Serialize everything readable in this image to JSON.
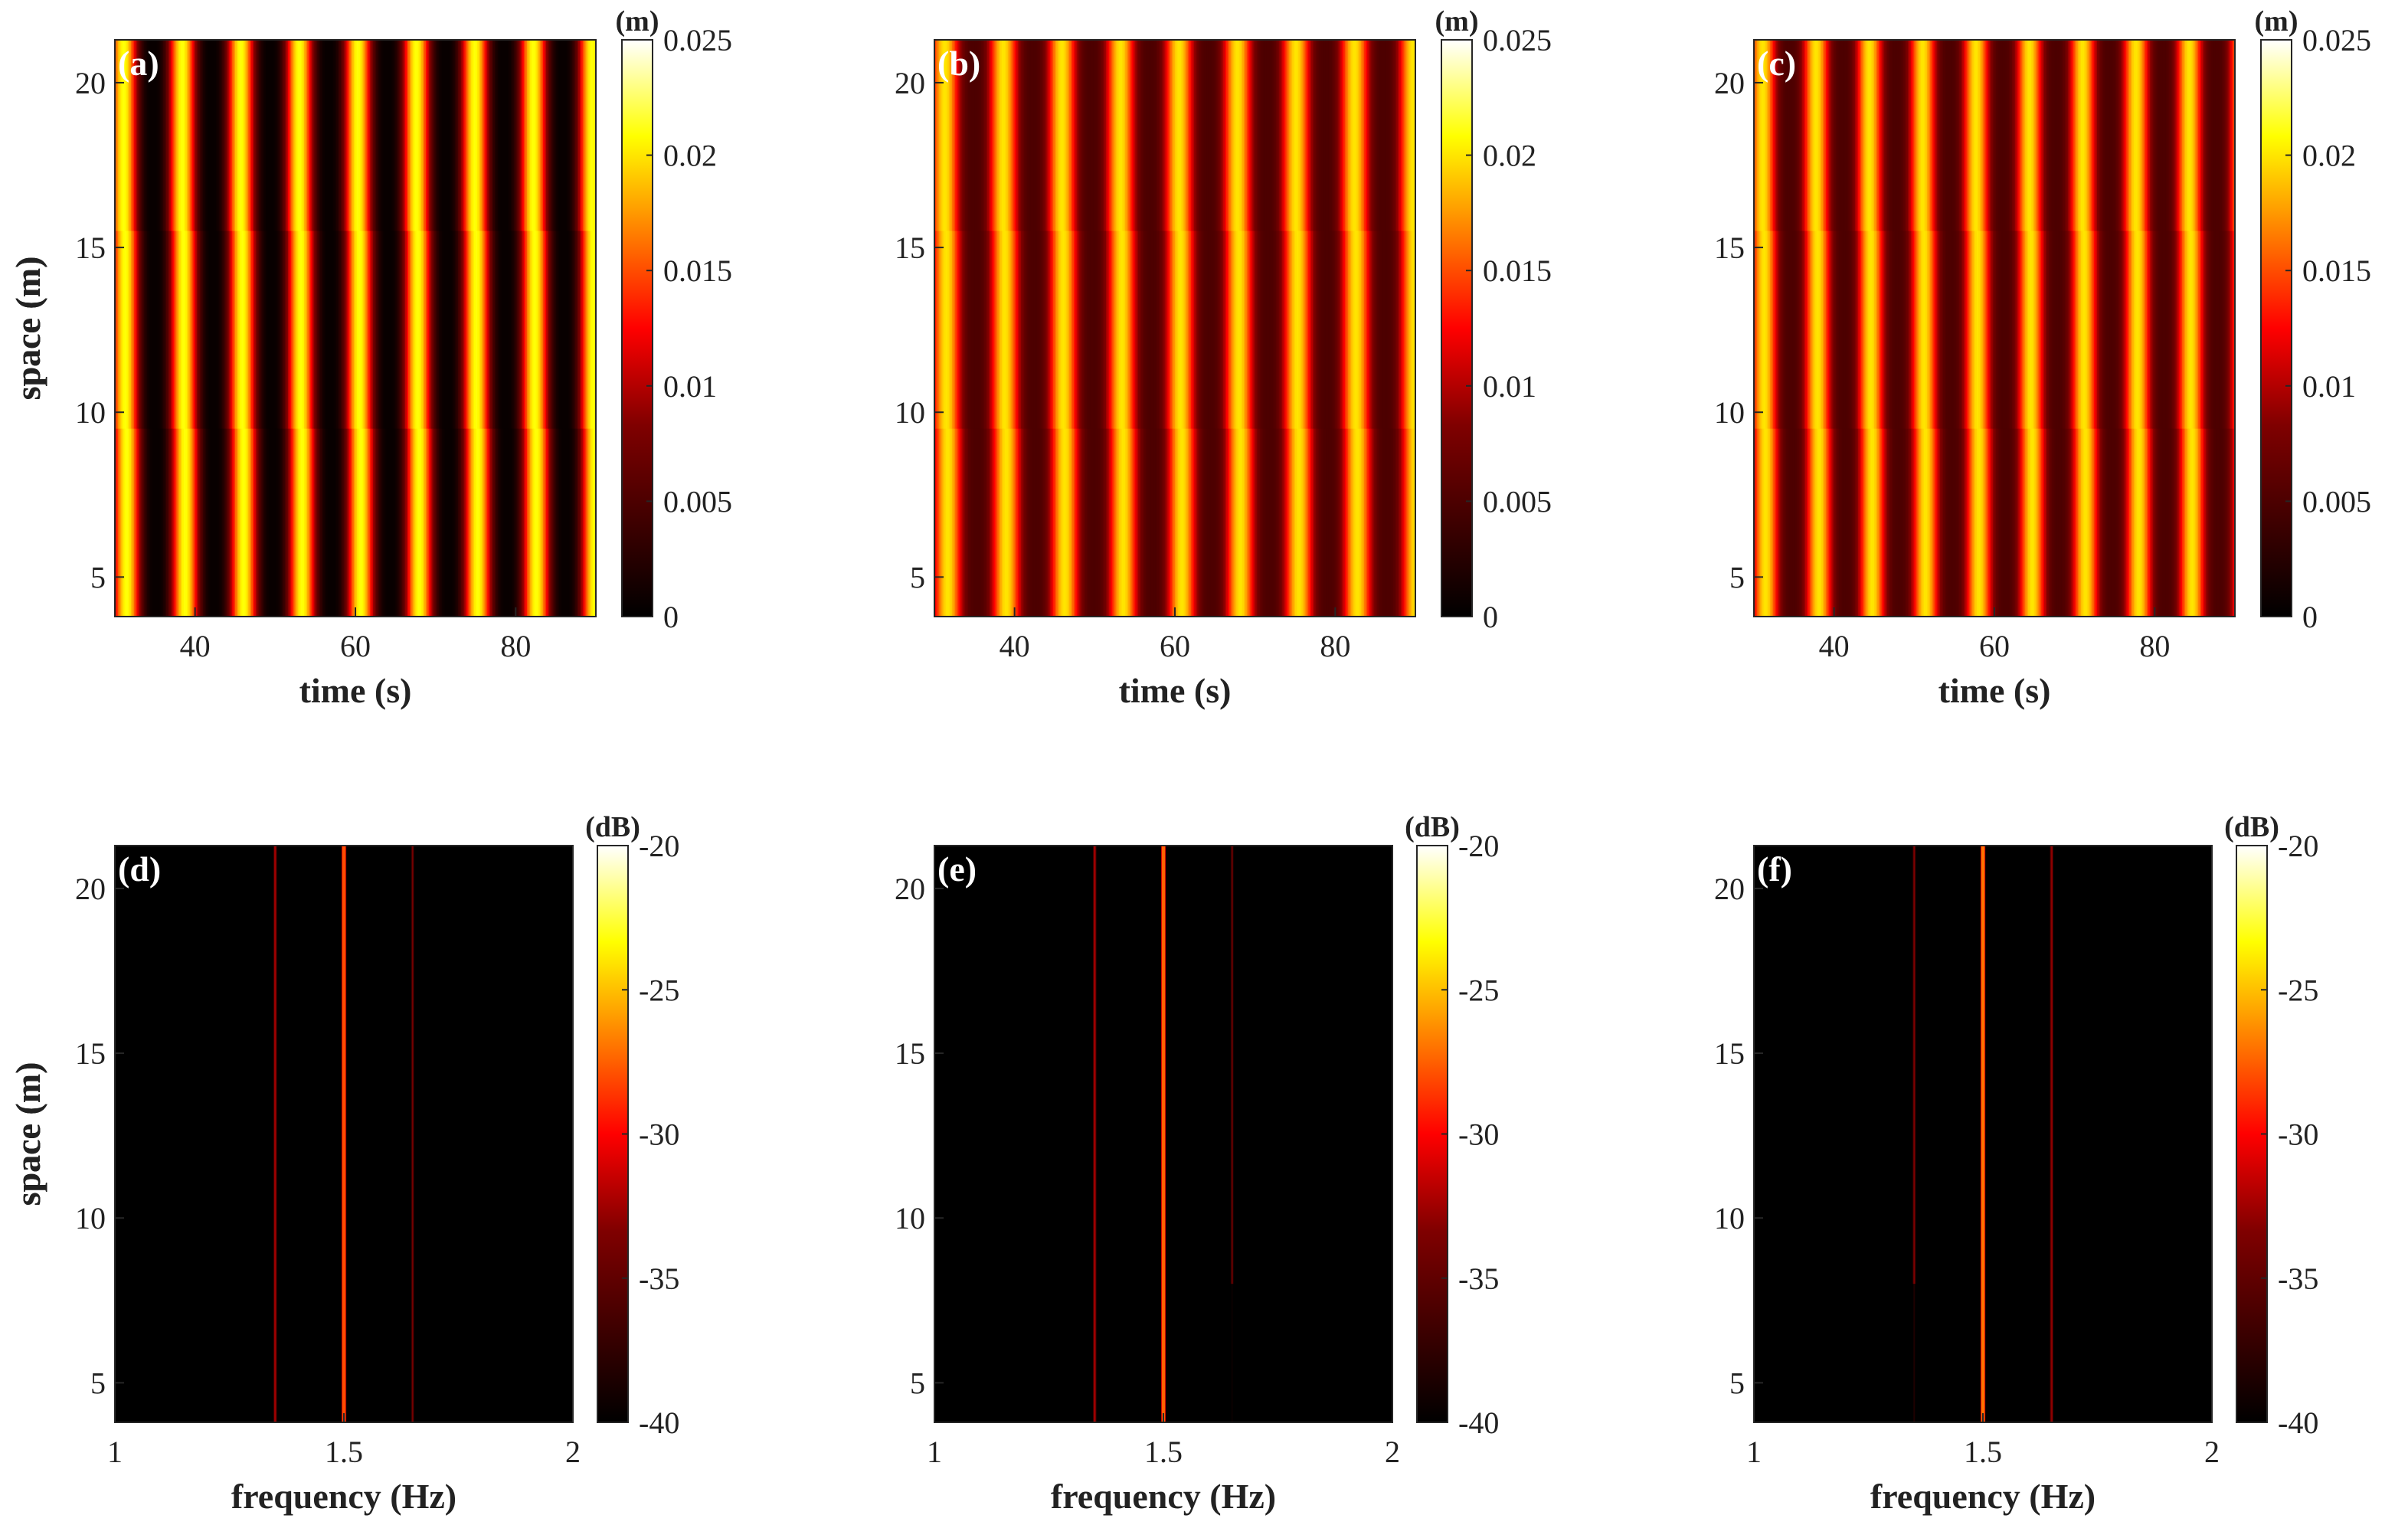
{
  "colormap": [
    "#000000",
    "#400000",
    "#800000",
    "#ff0000",
    "#ff8000",
    "#ffff00",
    "#ffffff"
  ],
  "chart_data": [
    {
      "type": "heatmap",
      "panel_label": "(a)",
      "xlabel": "time (s)",
      "ylabel": "space (m)",
      "xlim": [
        30,
        90
      ],
      "ylim": [
        3.8,
        21.3
      ],
      "xticks": [
        40,
        60,
        80
      ],
      "yticks": [
        5,
        10,
        15,
        20
      ],
      "colorbar": {
        "unit": "(m)",
        "range": [
          0,
          0.025
        ],
        "ticks": [
          "0",
          "0.005",
          "0.01",
          "0.015",
          "0.02",
          "0.025"
        ]
      },
      "pattern": {
        "kind": "wave",
        "period_s": 7.3,
        "phase_s": 31.3,
        "min": 0.0005,
        "max": 0.021,
        "tilt_s_per_m": 0.03
      }
    },
    {
      "type": "heatmap",
      "panel_label": "(b)",
      "xlabel": "time (s)",
      "ylabel": "space (m)",
      "xlim": [
        30,
        90
      ],
      "ylim": [
        3.8,
        21.3
      ],
      "xticks": [
        40,
        60,
        80
      ],
      "yticks": [
        5,
        10,
        15,
        20
      ],
      "colorbar": {
        "unit": "(m)",
        "range": [
          0,
          0.025
        ],
        "ticks": [
          "0",
          "0.005",
          "0.01",
          "0.015",
          "0.02",
          "0.025"
        ]
      },
      "pattern": {
        "kind": "wave",
        "period_s": 7.3,
        "phase_s": 31.5,
        "min": 0.005,
        "max": 0.02,
        "tilt_s_per_m": 0.03
      }
    },
    {
      "type": "heatmap",
      "panel_label": "(c)",
      "xlabel": "time (s)",
      "ylabel": "space (m)",
      "xlim": [
        30,
        90
      ],
      "ylim": [
        3.8,
        21.3
      ],
      "xticks": [
        40,
        60,
        80
      ],
      "yticks": [
        5,
        10,
        15,
        20
      ],
      "colorbar": {
        "unit": "(m)",
        "range": [
          0,
          0.025
        ],
        "ticks": [
          "0",
          "0.005",
          "0.01",
          "0.015",
          "0.02",
          "0.025"
        ]
      },
      "pattern": {
        "kind": "wave",
        "period_s": 6.65,
        "phase_s": 31.3,
        "min": 0.005,
        "max": 0.02,
        "tilt_s_per_m": 0.03
      }
    },
    {
      "type": "heatmap",
      "panel_label": "(d)",
      "xlabel": "frequency (Hz)",
      "ylabel": "space (m)",
      "xlim": [
        1,
        2
      ],
      "ylim": [
        3.8,
        21.3
      ],
      "xticks": [
        1,
        1.5,
        2
      ],
      "yticks": [
        5,
        10,
        15,
        20
      ],
      "colorbar": {
        "unit": "(dB)",
        "range": [
          -40,
          -20
        ],
        "ticks": [
          "-40",
          "-35",
          "-30",
          "-25",
          "-20"
        ]
      },
      "pattern": {
        "kind": "lines",
        "background": -40,
        "lines": [
          {
            "f": 1.35,
            "value": -32.5,
            "width_hz": 0.004
          },
          {
            "f": 1.5,
            "value": -28,
            "width_hz": 0.007
          },
          {
            "f": 1.65,
            "value": -34,
            "width_hz": 0.003
          }
        ]
      }
    },
    {
      "type": "heatmap",
      "panel_label": "(e)",
      "xlabel": "frequency (Hz)",
      "ylabel": "space (m)",
      "xlim": [
        1,
        2
      ],
      "ylim": [
        3.8,
        21.3
      ],
      "xticks": [
        1,
        1.5,
        2
      ],
      "yticks": [
        5,
        10,
        15,
        20
      ],
      "colorbar": {
        "unit": "(dB)",
        "range": [
          -40,
          -20
        ],
        "ticks": [
          "-40",
          "-35",
          "-30",
          "-25",
          "-20"
        ]
      },
      "pattern": {
        "kind": "lines",
        "background": -40,
        "lines": [
          {
            "f": 1.35,
            "value": -32.5,
            "width_hz": 0.004
          },
          {
            "f": 1.5,
            "value": -27.5,
            "width_hz": 0.007
          },
          {
            "f": 1.65,
            "value": -34.5,
            "width_hz": 0.003,
            "y_min": 8
          }
        ]
      }
    },
    {
      "type": "heatmap",
      "panel_label": "(f)",
      "xlabel": "frequency (Hz)",
      "ylabel": "space (m)",
      "xlim": [
        1,
        2
      ],
      "ylim": [
        3.8,
        21.3
      ],
      "xticks": [
        1,
        1.5,
        2
      ],
      "yticks": [
        5,
        10,
        15,
        20
      ],
      "colorbar": {
        "unit": "(dB)",
        "range": [
          -40,
          -20
        ],
        "ticks": [
          "-40",
          "-35",
          "-30",
          "-25",
          "-20"
        ]
      },
      "pattern": {
        "kind": "lines",
        "background": -40,
        "lines": [
          {
            "f": 1.35,
            "value": -33.5,
            "width_hz": 0.003,
            "y_min": 8
          },
          {
            "f": 1.5,
            "value": -27,
            "width_hz": 0.007
          },
          {
            "f": 1.65,
            "value": -33,
            "width_hz": 0.004
          }
        ]
      }
    }
  ]
}
